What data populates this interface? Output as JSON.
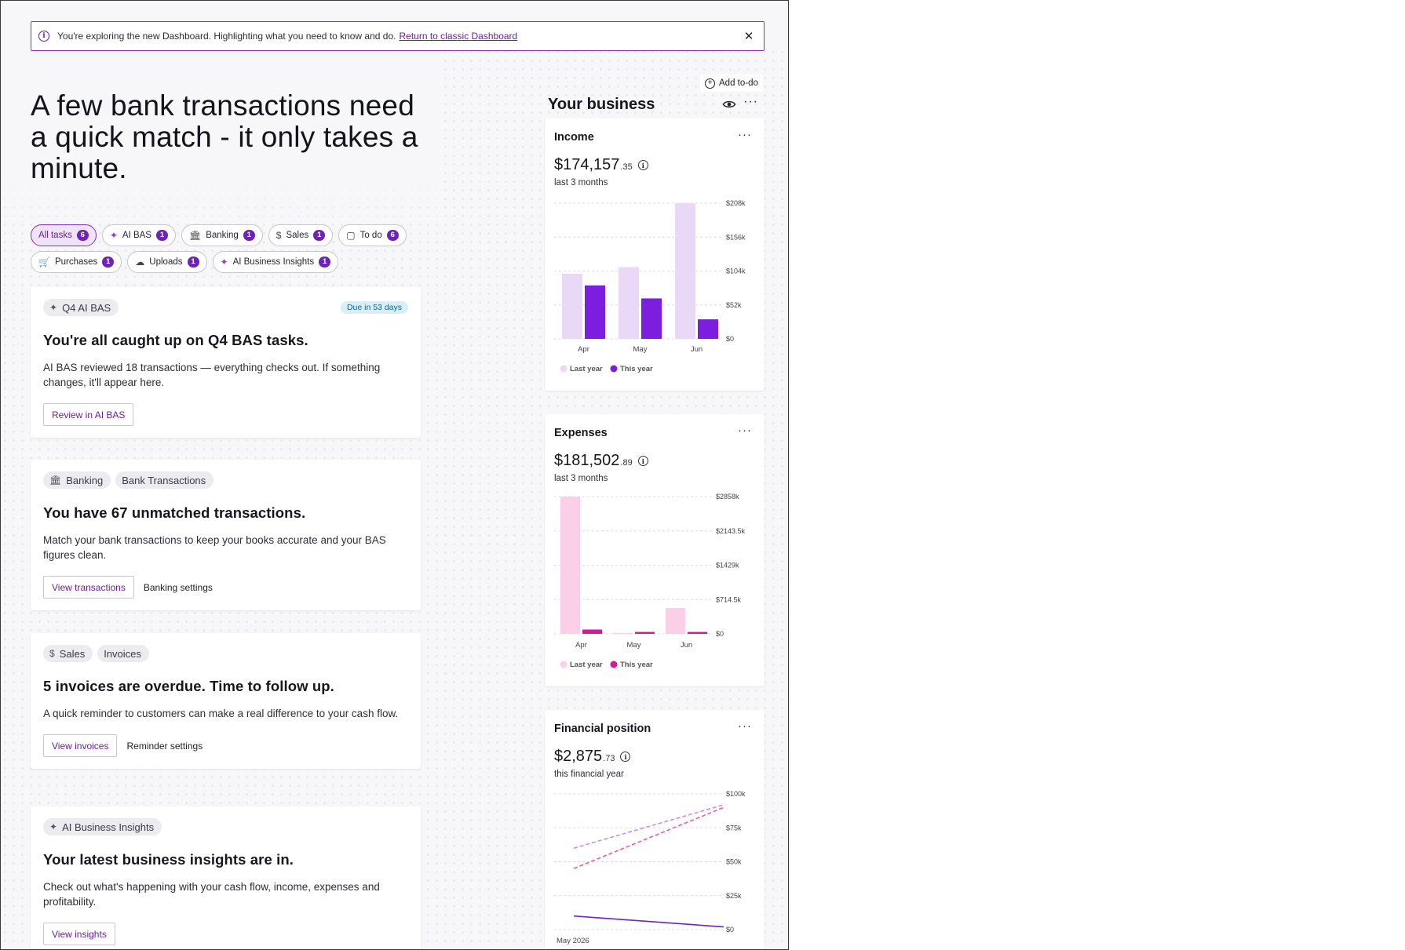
{
  "banner": {
    "message": "You're exploring the new Dashboard. Highlighting what you need to know and do.",
    "link": "Return to classic Dashboard",
    "close_glyph": "✕"
  },
  "headline": "A few bank transactions need a quick match - it only takes a minute.",
  "filters": [
    {
      "label": "All tasks",
      "count": "6",
      "icon": "",
      "active": true
    },
    {
      "label": "AI BAS",
      "count": "1",
      "icon": "sparkle-icon"
    },
    {
      "label": "Banking",
      "count": "1",
      "icon": "bank-icon"
    },
    {
      "label": "Sales",
      "count": "1",
      "icon": "dollar-circle-icon"
    },
    {
      "label": "To do",
      "count": "6",
      "icon": "clipboard-icon"
    },
    {
      "label": "Purchases",
      "count": "1",
      "icon": "cart-icon"
    },
    {
      "label": "Uploads",
      "count": "1",
      "icon": "cloud-upload-icon"
    },
    {
      "label": "AI Business Insights",
      "count": "1",
      "icon": "sparkle-icon"
    }
  ],
  "tasks": [
    {
      "tags": [
        "Q4 AI BAS"
      ],
      "due": "Due in 53 days",
      "title": "You're all caught up on Q4 BAS tasks.",
      "body": "AI BAS reviewed 18 transactions — everything checks out. If something changes, it'll appear here.",
      "primary": "Review in AI BAS",
      "secondary": ""
    },
    {
      "tags": [
        "Banking",
        "Bank Transactions"
      ],
      "title": "You have 67 unmatched transactions.",
      "body": "Match your bank transactions to keep your books accurate and your BAS figures clean.",
      "primary": "View transactions",
      "secondary": "Banking settings"
    },
    {
      "tags": [
        "Sales",
        "Invoices"
      ],
      "title": "5 invoices are overdue. Time to follow up.",
      "body": "A quick reminder to customers can make a real difference to your cash flow.",
      "primary": "View invoices",
      "secondary": "Reminder settings"
    },
    {
      "tags": [
        "AI Business Insights"
      ],
      "title": "Your latest business insights are in.",
      "body": "Check out what's happening with your cash flow, income, expenses and profitability.",
      "primary": "View insights",
      "secondary": ""
    }
  ],
  "business": {
    "add_todo": "Add to-do",
    "title": "Your business",
    "more_glyph": "···"
  },
  "widgets": {
    "income": {
      "title": "Income",
      "amount": "$174,157",
      "cents": ".35",
      "period": "last 3 months",
      "info_glyph": "i"
    },
    "expenses": {
      "title": "Expenses",
      "amount": "$181,502",
      "cents": ".89",
      "period": "last 3 months",
      "info_glyph": "i"
    },
    "financial": {
      "title": "Financial position",
      "amount": "$2,875",
      "cents": ".73",
      "period": "this financial year",
      "info_glyph": "i"
    }
  },
  "colors": {
    "accent": "#6a1f9a",
    "income_last": "#ead8f7",
    "income_this": "#7b1ee0",
    "expense_last": "#fbcfe8",
    "expense_this": "#d6199a",
    "fin_line_a": "#c38ff0",
    "fin_line_b": "#ea5aa8",
    "fin_line_c": "#6d22c8"
  },
  "chart_data": [
    {
      "type": "bar",
      "title": "Income",
      "categories": [
        "Apr",
        "May",
        "Jun"
      ],
      "series": [
        {
          "name": "Last year",
          "values": [
            100000,
            110000,
            208000
          ]
        },
        {
          "name": "This year",
          "values": [
            82000,
            62000,
            30000
          ]
        }
      ],
      "ylim": [
        0,
        208000
      ],
      "yticks": [
        "$0",
        "$52k",
        "$104k",
        "$156k",
        "$208k"
      ],
      "legend": "bottom-left"
    },
    {
      "type": "bar",
      "title": "Expenses",
      "categories": [
        "Apr",
        "May",
        "Jun"
      ],
      "series": [
        {
          "name": "Last year",
          "values": [
            2858000,
            20000,
            540000
          ]
        },
        {
          "name": "This year",
          "values": [
            90000,
            40000,
            40000
          ]
        }
      ],
      "ylim": [
        0,
        2858000
      ],
      "yticks": [
        "$0",
        "$714.5k",
        "$1429k",
        "$2143.5k",
        "$2858k"
      ],
      "legend": "bottom-left"
    },
    {
      "type": "line",
      "title": "Financial position",
      "x": [
        0,
        1
      ],
      "xlabel_start": "May 2026",
      "series": [
        {
          "values": [
            60000,
            92000
          ],
          "style": "dashed"
        },
        {
          "values": [
            45000,
            90000
          ],
          "style": "dashed"
        },
        {
          "values": [
            10000,
            2000
          ],
          "style": "solid"
        }
      ],
      "ylim": [
        0,
        100000
      ],
      "yticks": [
        "$0",
        "$25k",
        "$50k",
        "$75k",
        "$100k"
      ]
    }
  ]
}
